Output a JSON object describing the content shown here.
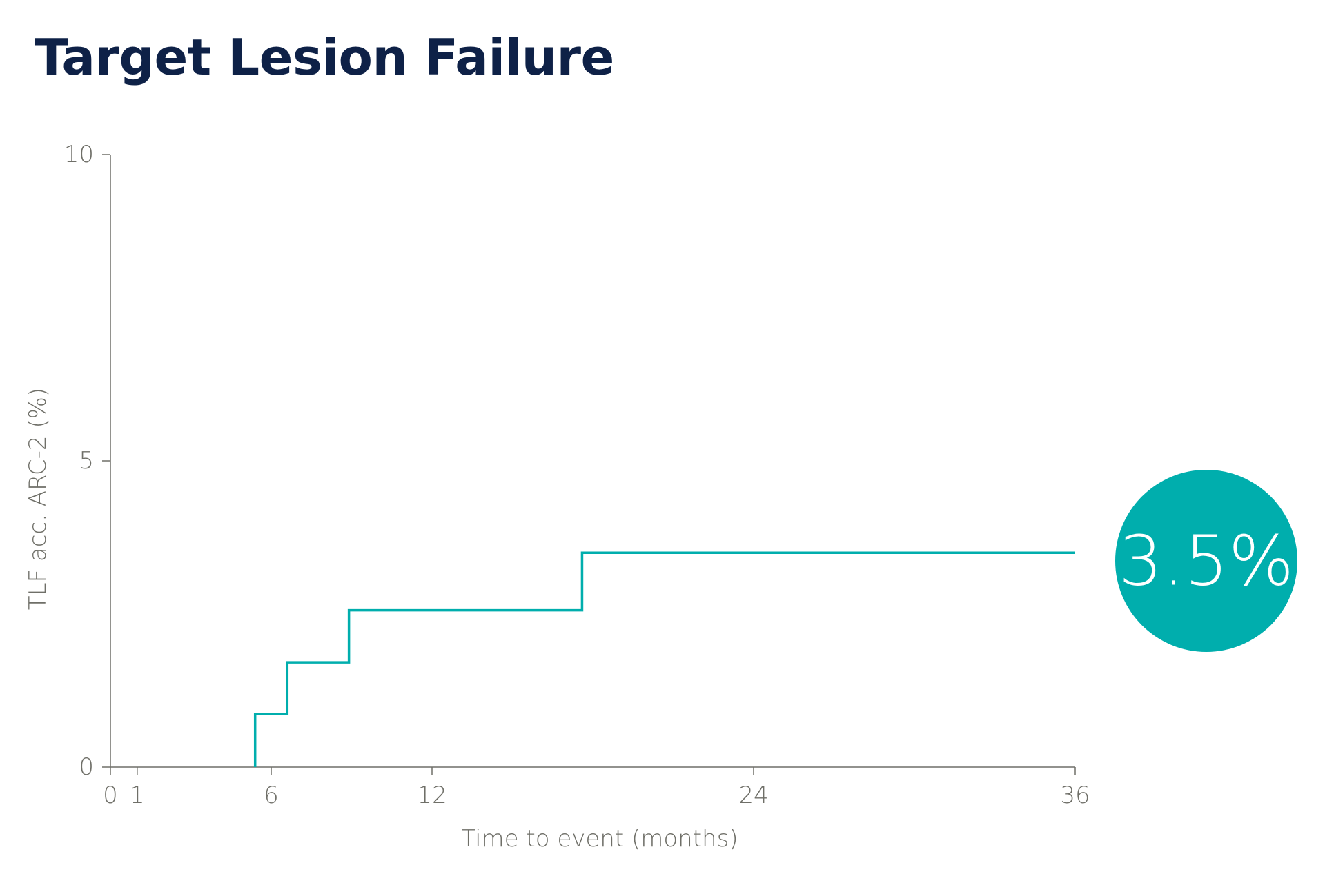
{
  "title": "Target Lesion Failure",
  "colors": {
    "title": "#0e2147",
    "line": "#00aead",
    "axis": "#6f6f68",
    "badge": "#00aead",
    "badge_text": "#ffffff"
  },
  "badge": {
    "label": "3.5%"
  },
  "chart_data": {
    "type": "line",
    "step": true,
    "title": "Target Lesion Failure",
    "xlabel": "Time to event (months)",
    "ylabel": "TLF acc. ARC-2 (%)",
    "xlim": [
      0,
      36
    ],
    "ylim": [
      0,
      10
    ],
    "xticks": [
      0,
      1,
      6,
      12,
      24,
      36
    ],
    "yticks": [
      0,
      5,
      10
    ],
    "grid": false,
    "series": [
      {
        "x": [
          5.4,
          5.4,
          6.6,
          8.9,
          17.6,
          36
        ],
        "y": [
          0,
          0.87,
          1.71,
          2.56,
          3.5,
          3.5
        ]
      }
    ],
    "annotations": [
      {
        "text": "3.5%",
        "x": 36,
        "y": 3.5
      }
    ]
  }
}
